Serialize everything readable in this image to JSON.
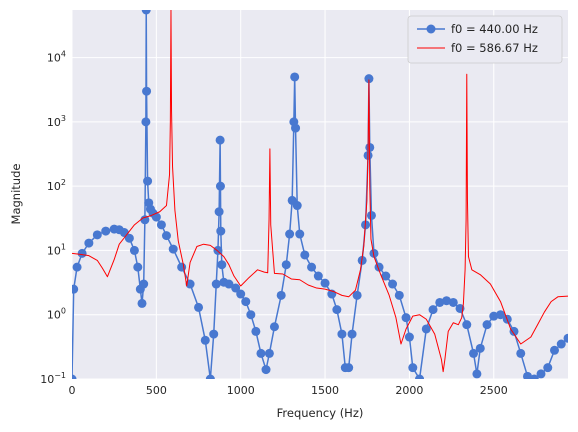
{
  "chart_data": {
    "type": "line",
    "title": "",
    "xlabel": "Frequency (Hz)",
    "ylabel": "Magnitude",
    "xlim": [
      0,
      2940
    ],
    "ylim": [
      0.1,
      55000
    ],
    "yscale": "log",
    "grid": true,
    "legend_position": "top-right",
    "x_ticks": [
      {
        "value": 0,
        "label": "0"
      },
      {
        "value": 500,
        "label": "500"
      },
      {
        "value": 1000,
        "label": "1000"
      },
      {
        "value": 1500,
        "label": "1500"
      },
      {
        "value": 2000,
        "label": "2000"
      },
      {
        "value": 2500,
        "label": "2500"
      }
    ],
    "y_ticks": [
      {
        "value": 0.1,
        "mant": "10",
        "exp": "−1"
      },
      {
        "value": 1,
        "mant": "10",
        "exp": "0"
      },
      {
        "value": 10,
        "mant": "10",
        "exp": "1"
      },
      {
        "value": 100,
        "mant": "10",
        "exp": "2"
      },
      {
        "value": 1000,
        "mant": "10",
        "exp": "3"
      },
      {
        "value": 10000,
        "mant": "10",
        "exp": "4"
      }
    ],
    "colors": {
      "plot_bg": "#eaeaf2",
      "grid": "#ffffff",
      "series_blue": "#4878d0",
      "series_red": "#ff0000"
    },
    "series": [
      {
        "name": "f0 = 440.00 Hz",
        "color": "#4878d0",
        "marker": "circle",
        "x": [
          0,
          10,
          30,
          60,
          100,
          150,
          200,
          250,
          280,
          310,
          340,
          370,
          390,
          405,
          415,
          425,
          432,
          438,
          440,
          442,
          448,
          455,
          465,
          480,
          500,
          530,
          560,
          600,
          650,
          700,
          750,
          790,
          820,
          840,
          855,
          865,
          872,
          878,
          880,
          882,
          888,
          900,
          930,
          970,
          1000,
          1030,
          1060,
          1090,
          1120,
          1150,
          1170,
          1200,
          1240,
          1270,
          1290,
          1305,
          1315,
          1320,
          1325,
          1335,
          1350,
          1380,
          1420,
          1460,
          1500,
          1540,
          1570,
          1600,
          1620,
          1640,
          1660,
          1690,
          1720,
          1740,
          1755,
          1760,
          1765,
          1775,
          1790,
          1820,
          1860,
          1900,
          1940,
          1980,
          2000,
          2020,
          2060,
          2100,
          2140,
          2180,
          2220,
          2260,
          2300,
          2340,
          2380,
          2400,
          2420,
          2460,
          2500,
          2540,
          2580,
          2620,
          2660,
          2700,
          2740,
          2780,
          2820,
          2860,
          2900,
          2940
        ],
        "y": [
          0.1,
          2.5,
          5.5,
          9,
          13,
          17.5,
          20,
          21.5,
          21,
          19,
          15.5,
          10,
          5.5,
          2.5,
          1.5,
          3,
          30,
          1000,
          55000,
          3000,
          120,
          55,
          44,
          38,
          33,
          25,
          17,
          10.5,
          5.5,
          3,
          1.3,
          0.4,
          0.1,
          0.5,
          3,
          10,
          40,
          520,
          100,
          20,
          6,
          3.2,
          3,
          2.6,
          2.1,
          1.6,
          1.0,
          0.55,
          0.25,
          0.14,
          0.25,
          0.65,
          2,
          6,
          18,
          60,
          1000,
          5000,
          800,
          50,
          18,
          8.5,
          5.5,
          4,
          3.1,
          2.1,
          1.2,
          0.5,
          0.15,
          0.15,
          0.5,
          2,
          7,
          25,
          300,
          4700,
          400,
          35,
          9,
          5.5,
          4,
          3,
          2,
          0.9,
          0.45,
          0.15,
          0.1,
          0.6,
          1.2,
          1.55,
          1.65,
          1.55,
          1.25,
          0.7,
          0.25,
          0.12,
          0.3,
          0.7,
          0.95,
          1.0,
          0.85,
          0.55,
          0.25,
          0.11,
          0.1,
          0.12,
          0.15,
          0.28,
          0.35,
          0.43
        ]
      },
      {
        "name": "f0 = 586.67 Hz",
        "color": "#ff0000",
        "marker": "none",
        "x": [
          0,
          50,
          100,
          150,
          180,
          210,
          250,
          280,
          320,
          370,
          420,
          470,
          520,
          560,
          578,
          583,
          586.67,
          590,
          596,
          610,
          630,
          660,
          680,
          700,
          740,
          780,
          820,
          860,
          900,
          930,
          960,
          1000,
          1050,
          1100,
          1140,
          1160,
          1168,
          1173,
          1178,
          1200,
          1250,
          1300,
          1350,
          1400,
          1450,
          1500,
          1550,
          1600,
          1640,
          1680,
          1710,
          1730,
          1748,
          1755,
          1760,
          1765,
          1772,
          1790,
          1830,
          1880,
          1920,
          1950,
          1980,
          2020,
          2060,
          2100,
          2150,
          2190,
          2200,
          2210,
          2230,
          2260,
          2290,
          2310,
          2320,
          2330,
          2336,
          2340,
          2344,
          2350,
          2370,
          2420,
          2480,
          2540,
          2600,
          2660,
          2720,
          2760,
          2800,
          2840,
          2880,
          2940
        ],
        "y": [
          9,
          8.7,
          8.3,
          7,
          5.3,
          3.9,
          7.2,
          12.5,
          17,
          25,
          32,
          35,
          40,
          50,
          150,
          1000,
          55000,
          1500,
          200,
          42,
          14,
          6,
          2.8,
          6.5,
          11.5,
          12.5,
          12,
          10,
          8,
          6,
          4,
          2.8,
          3.8,
          5,
          4.6,
          4.5,
          30,
          380,
          25,
          4.4,
          4.3,
          3.6,
          3.5,
          2.9,
          2.6,
          2.5,
          2.3,
          2.0,
          1.9,
          2.4,
          5,
          12,
          60,
          400,
          4500,
          100,
          15,
          8,
          4.2,
          2.0,
          0.9,
          0.35,
          0.6,
          0.95,
          1.0,
          0.85,
          0.5,
          0.2,
          0.13,
          0.2,
          0.55,
          0.75,
          0.7,
          0.9,
          1.5,
          5,
          30,
          5500,
          60,
          8,
          5,
          4.2,
          3.0,
          1.6,
          0.6,
          0.35,
          0.45,
          0.7,
          1.1,
          1.6,
          1.9,
          1.95
        ]
      }
    ]
  }
}
